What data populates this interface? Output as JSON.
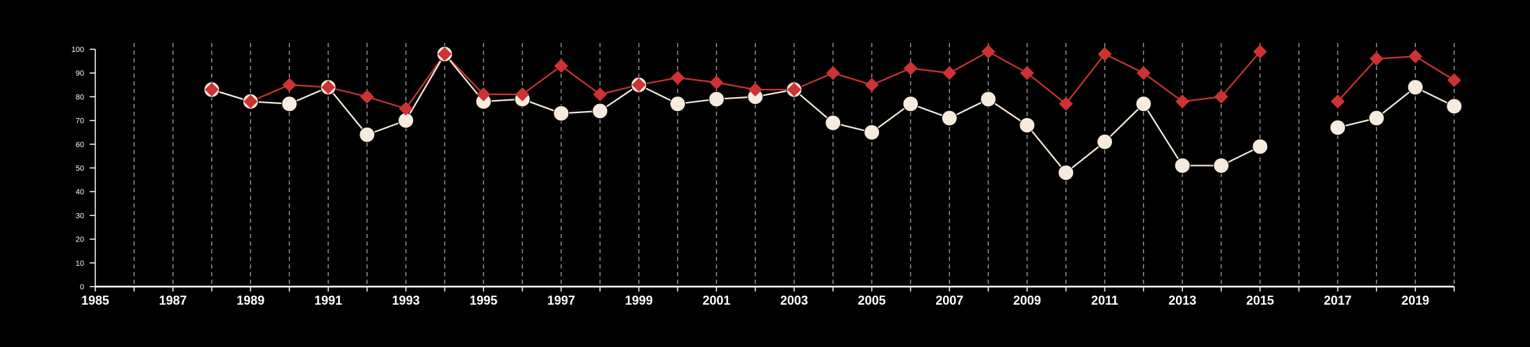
{
  "chart_data": {
    "type": "line",
    "title": "",
    "xlabel": "",
    "ylabel": "",
    "xlim": [
      1985,
      2020
    ],
    "ylim": [
      0,
      100
    ],
    "x_ticks": [
      1985,
      1987,
      1989,
      1991,
      1993,
      1995,
      1997,
      1999,
      2001,
      2003,
      2005,
      2007,
      2009,
      2011,
      2013,
      2015,
      2017,
      2019
    ],
    "y_ticks": [
      0,
      10,
      20,
      30,
      40,
      50,
      60,
      70,
      80,
      90,
      100
    ],
    "grid": "vertical dashed lines at every year",
    "legend": "none",
    "colors": {
      "background": "#000000",
      "axis": "#ffffff",
      "grid": "#9a9a9a",
      "series_red": "#cc3333",
      "series_light": "#f7ebdd"
    },
    "series": [
      {
        "marker": "diamond",
        "color": "#cc3333",
        "x": [
          1988,
          1989,
          1990,
          1991,
          1992,
          1993,
          1994,
          1995,
          1996,
          1997,
          1998,
          1999,
          2000,
          2001,
          2002,
          2003,
          2004,
          2005,
          2006,
          2007,
          2008,
          2009,
          2010,
          2011,
          2012,
          2013,
          2014,
          2015,
          2016,
          2017,
          2018,
          2019,
          2020
        ],
        "values": [
          83,
          78,
          85,
          84,
          80,
          75,
          98,
          81,
          81,
          93,
          81,
          85,
          88,
          86,
          83,
          83,
          90,
          85,
          92,
          90,
          99,
          90,
          77,
          98,
          90,
          78,
          80,
          99,
          null,
          78,
          96,
          97,
          87
        ]
      },
      {
        "marker": "circle",
        "color": "#f7ebdd",
        "x": [
          1988,
          1989,
          1990,
          1991,
          1992,
          1993,
          1994,
          1995,
          1996,
          1997,
          1998,
          1999,
          2000,
          2001,
          2002,
          2003,
          2004,
          2005,
          2006,
          2007,
          2008,
          2009,
          2010,
          2011,
          2012,
          2013,
          2014,
          2015,
          2016,
          2017,
          2018,
          2019,
          2020
        ],
        "values": [
          83,
          78,
          77,
          84,
          64,
          70,
          98,
          78,
          79,
          73,
          74,
          85,
          77,
          79,
          80,
          83,
          69,
          65,
          77,
          71,
          79,
          68,
          48,
          61,
          77,
          51,
          51,
          59,
          null,
          67,
          71,
          84,
          76
        ]
      }
    ]
  }
}
